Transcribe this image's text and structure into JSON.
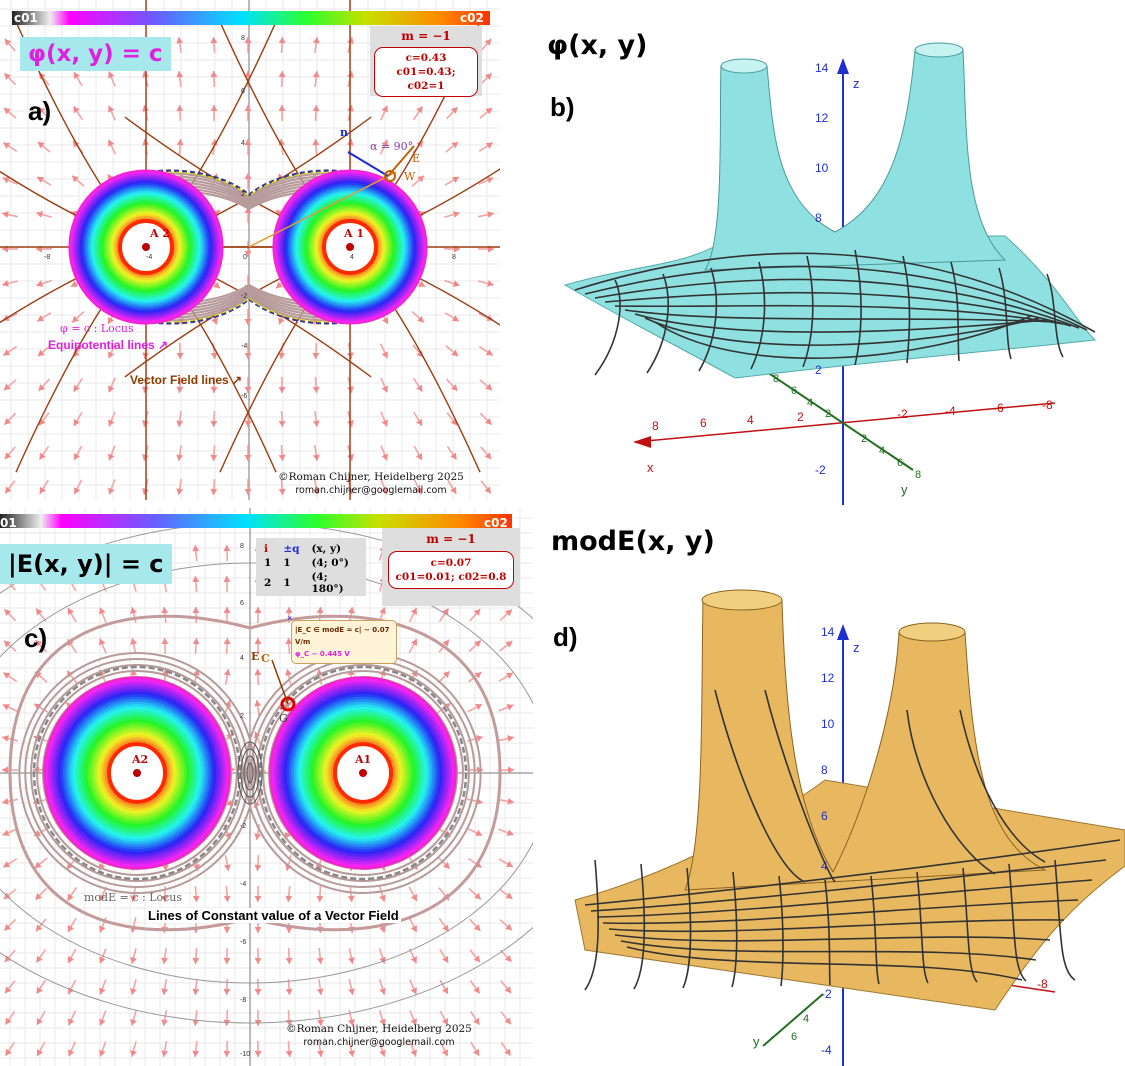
{
  "panel_a": {
    "letter": "a)",
    "equation": "φ(x, y) = c",
    "colorbar": {
      "left_label": "c01",
      "right_label": "c02"
    },
    "info": {
      "m_line": "m = −1",
      "c_line": "c=0.43",
      "c_range_line": "c01=0.43; c02=1"
    },
    "charges": [
      "A 2",
      "A 1"
    ],
    "annotations": {
      "locus": "φ = c : Locus",
      "equipotential": "Equipotential lines ↗",
      "vector_field": "Vector Field lines ↗",
      "alpha": "α = 90°",
      "n_vec": "n",
      "e_vec": "E",
      "w_point": "W"
    },
    "axis_ticks_x": [
      "-8",
      "-4",
      "0",
      "4",
      "8"
    ],
    "axis_ticks_y": [
      "8",
      "6",
      "4",
      "2",
      "-2",
      "-4",
      "-6"
    ],
    "credit_line1": "©Roman Chijner, Heidelberg 2025",
    "credit_line2": "roman.chijner@googlemail.com"
  },
  "panel_b": {
    "letter": "b)",
    "title": "φ(x, y)",
    "axis_labels": {
      "z": "z",
      "x": "x",
      "y": "y"
    },
    "z_ticks": [
      "14",
      "12",
      "10",
      "8",
      "2",
      "-2"
    ],
    "x_ticks": [
      "8",
      "6",
      "4",
      "2",
      "-2",
      "-4",
      "-6",
      "-8"
    ],
    "y_ticks": [
      "8",
      "6",
      "4",
      "2",
      "2",
      "4",
      "6",
      "8"
    ],
    "surface_color": "#8fe0e0"
  },
  "panel_c": {
    "letter": "c)",
    "equation": "|E(x, y)| = c",
    "colorbar": {
      "left_label": "01",
      "right_label": "c02"
    },
    "charge_table": {
      "headers": [
        "i",
        "±q",
        "(x, y)"
      ],
      "rows": [
        [
          "1",
          "1",
          "(4; 0°)"
        ],
        [
          "2",
          "1",
          "(4; 180°)"
        ]
      ]
    },
    "info": {
      "m_line": "m = −1",
      "c_line": "c=0.07",
      "c_range_line": "c01=0.01; c02=0.8"
    },
    "point_box": {
      "line1": "|E_C ∈ modE = c| ~ 0.07 V/m",
      "line2": "φ_C ~ 0.445 V"
    },
    "point_labels": {
      "e_vec": "E",
      "c_label": "C",
      "g_label": "G"
    },
    "charges": [
      "A2",
      "A1"
    ],
    "annotations": {
      "locus": "modE = c : Locus",
      "caption": "Lines of Constant value of a Vector Field"
    },
    "axis_ticks_y": [
      "8",
      "6",
      "4",
      "2",
      "-2",
      "-4",
      "-6",
      "-8",
      "-10"
    ],
    "credit_line1": "©Roman Chijner, Heidelberg 2025",
    "credit_line2": "roman.chijner@googlemail.com"
  },
  "panel_d": {
    "letter": "d)",
    "title": "modE(x, y)",
    "axis_labels": {
      "z": "z",
      "y": "y"
    },
    "z_ticks": [
      "14",
      "12",
      "10",
      "8",
      "6",
      "4",
      "-2",
      "-4"
    ],
    "y_ticks": [
      "6",
      "4"
    ],
    "x_ticks": [
      "-8"
    ],
    "surface_color": "#e8b860"
  }
}
